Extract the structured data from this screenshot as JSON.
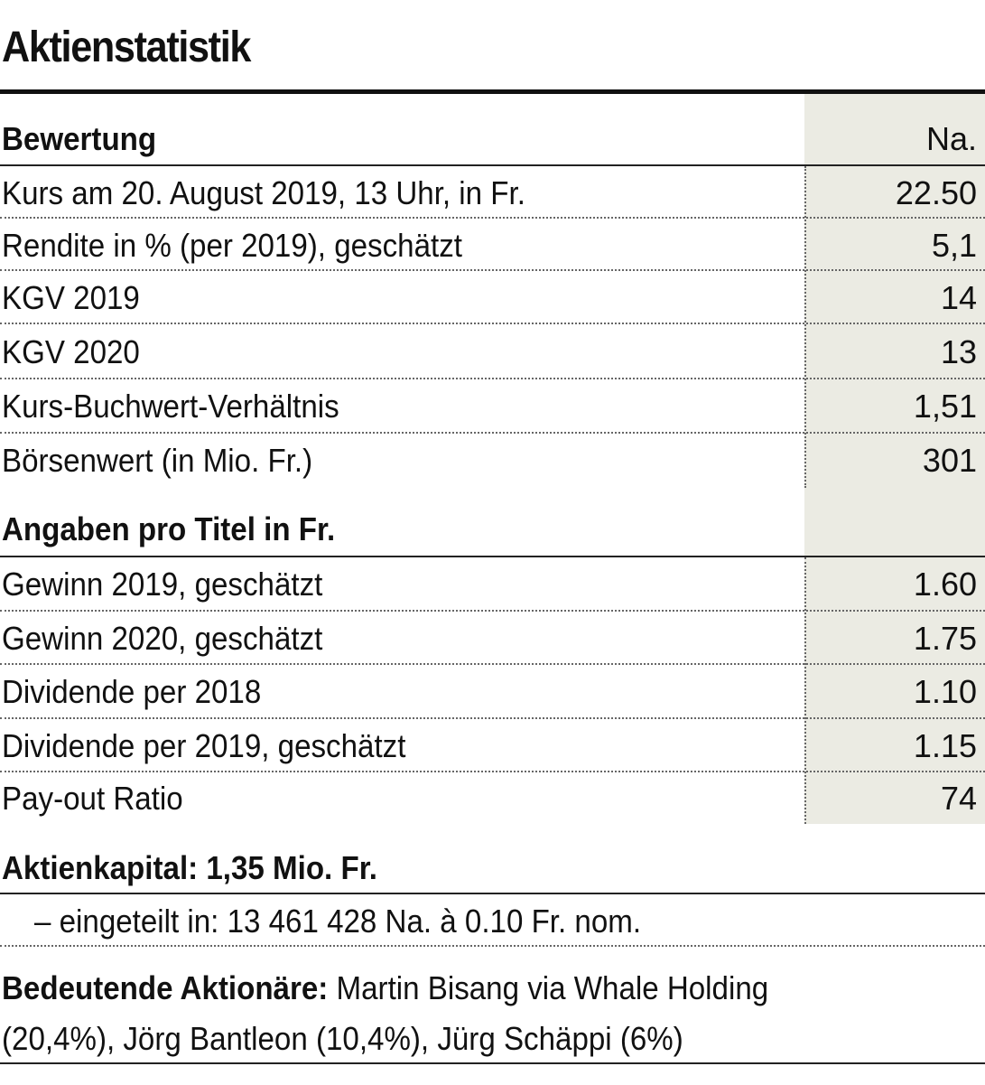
{
  "title": "Aktienstatistik",
  "bewertung": {
    "header": "Bewertung",
    "column": "Na.",
    "rows": [
      {
        "label": "Kurs am 20. August 2019, 13 Uhr, in Fr.",
        "value": "22.50"
      },
      {
        "label": "Rendite in % (per 2019), geschätzt",
        "value": "5,1"
      },
      {
        "label": "KGV 2019",
        "value": "14"
      },
      {
        "label": "KGV 2020",
        "value": "13"
      },
      {
        "label": "Kurs-Buchwert-Verhältnis",
        "value": "1,51"
      },
      {
        "label": "Börsenwert (in Mio. Fr.)",
        "value": "301"
      }
    ]
  },
  "angaben": {
    "header": "Angaben pro Titel in Fr.",
    "rows": [
      {
        "label": "Gewinn 2019, geschätzt",
        "value": "1.60"
      },
      {
        "label": "Gewinn 2020, geschätzt",
        "value": "1.75"
      },
      {
        "label": "Dividende per 2018",
        "value": "1.10"
      },
      {
        "label": "Dividende per 2019, geschätzt",
        "value": "1.15"
      },
      {
        "label": "Pay-out Ratio",
        "value": "74"
      }
    ]
  },
  "aktienkapital": {
    "label": "Aktienkapital: 1,35 Mio. Fr.",
    "detail": "– eingeteilt in: 13 461 428 Na. à 0.10 Fr. nom."
  },
  "aktionaere": {
    "label": "Bedeutende Aktionäre:",
    "line1": "Martin Bisang via Whale Holding",
    "line2": "(20,4%), Jörg Bantleon (10,4%), Jürg Schäppi (6%)"
  },
  "colors": {
    "shade": "#ebebe3",
    "text": "#111111"
  }
}
